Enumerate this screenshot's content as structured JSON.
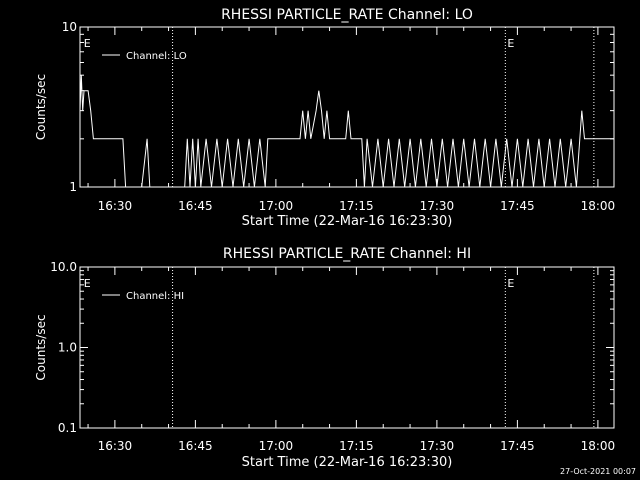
{
  "footer": {
    "timestamp": "27-Oct-2021 00:07"
  },
  "chart_data": [
    {
      "type": "line",
      "title": "RHESSI PARTICLE_RATE Channel: LO",
      "xlabel": "Start Time (22-Mar-16 16:23:30)",
      "ylabel": "Counts/sec",
      "yscale": "log",
      "ylim": [
        1,
        10
      ],
      "xlim": [
        "16:23:30",
        "18:03:00"
      ],
      "ytick_labels": [
        "1",
        "10"
      ],
      "xtick_labels": [
        "16:30",
        "16:45",
        "17:00",
        "17:15",
        "17:30",
        "17:45",
        "18:00"
      ],
      "legend": {
        "placement": "top-left",
        "entries": [
          "Channel: LO"
        ]
      },
      "event_markers": [
        {
          "time": "16:23:50",
          "label": "E",
          "line": false
        },
        {
          "time": "16:40:45",
          "label": "",
          "line": true
        },
        {
          "time": "17:42:45",
          "label": "E",
          "line": true
        },
        {
          "time": "17:59:15",
          "label": "",
          "line": true
        }
      ],
      "series": [
        {
          "points": [
            [
              "16:23:30",
              3
            ],
            [
              "16:23:45",
              5
            ],
            [
              "16:24:00",
              3
            ],
            [
              "16:24:15",
              4
            ],
            [
              "16:25:00",
              4
            ],
            [
              "16:25:30",
              3
            ],
            [
              "16:26:00",
              2
            ],
            [
              "16:31:30",
              2
            ],
            [
              "16:32:00",
              1
            ],
            [
              "16:35:00",
              1
            ],
            [
              "16:36:00",
              2
            ],
            [
              "16:36:30",
              1
            ],
            [
              "16:43:00",
              1
            ],
            [
              "16:43:30",
              2
            ],
            [
              "16:44:00",
              1
            ],
            [
              "16:44:30",
              2
            ],
            [
              "16:45:00",
              1
            ],
            [
              "16:45:30",
              2
            ],
            [
              "16:46:00",
              1
            ],
            [
              "16:47:00",
              2
            ],
            [
              "16:48:00",
              1
            ],
            [
              "16:49:00",
              2
            ],
            [
              "16:50:00",
              1
            ],
            [
              "16:51:00",
              2
            ],
            [
              "16:52:00",
              1
            ],
            [
              "16:53:00",
              2
            ],
            [
              "16:54:00",
              1
            ],
            [
              "16:55:00",
              2
            ],
            [
              "16:56:00",
              1
            ],
            [
              "16:57:00",
              2
            ],
            [
              "16:58:00",
              1
            ],
            [
              "16:58:30",
              2
            ],
            [
              "17:04:30",
              2
            ],
            [
              "17:05:00",
              3
            ],
            [
              "17:05:30",
              2
            ],
            [
              "17:06:00",
              3
            ],
            [
              "17:06:30",
              2
            ],
            [
              "17:07:30",
              3
            ],
            [
              "17:08:00",
              4
            ],
            [
              "17:08:30",
              3
            ],
            [
              "17:09:00",
              2
            ],
            [
              "17:09:30",
              3
            ],
            [
              "17:10:00",
              2
            ],
            [
              "17:13:00",
              2
            ],
            [
              "17:13:30",
              3
            ],
            [
              "17:14:00",
              2
            ],
            [
              "17:16:00",
              2
            ],
            [
              "17:16:30",
              1
            ],
            [
              "17:17:00",
              2
            ],
            [
              "17:18:00",
              1
            ],
            [
              "17:19:00",
              2
            ],
            [
              "17:20:00",
              1
            ],
            [
              "17:21:00",
              2
            ],
            [
              "17:22:00",
              1
            ],
            [
              "17:23:00",
              2
            ],
            [
              "17:24:00",
              1
            ],
            [
              "17:25:00",
              2
            ],
            [
              "17:26:00",
              1
            ],
            [
              "17:27:00",
              2
            ],
            [
              "17:28:00",
              1
            ],
            [
              "17:29:00",
              2
            ],
            [
              "17:30:00",
              1
            ],
            [
              "17:31:00",
              2
            ],
            [
              "17:32:00",
              1
            ],
            [
              "17:33:00",
              2
            ],
            [
              "17:34:00",
              1
            ],
            [
              "17:35:00",
              2
            ],
            [
              "17:36:00",
              1
            ],
            [
              "17:37:00",
              2
            ],
            [
              "17:38:00",
              1
            ],
            [
              "17:39:00",
              2
            ],
            [
              "17:40:00",
              1
            ],
            [
              "17:41:00",
              2
            ],
            [
              "17:42:00",
              1
            ],
            [
              "17:43:00",
              2
            ],
            [
              "17:44:00",
              1
            ],
            [
              "17:45:00",
              2
            ],
            [
              "17:46:00",
              1
            ],
            [
              "17:47:00",
              2
            ],
            [
              "17:48:00",
              1
            ],
            [
              "17:49:00",
              2
            ],
            [
              "17:50:00",
              1
            ],
            [
              "17:51:00",
              2
            ],
            [
              "17:52:00",
              1
            ],
            [
              "17:53:00",
              2
            ],
            [
              "17:54:00",
              1
            ],
            [
              "17:55:00",
              2
            ],
            [
              "17:56:00",
              1
            ],
            [
              "17:57:00",
              3
            ],
            [
              "17:57:30",
              2
            ],
            [
              "18:03:00",
              2
            ]
          ]
        }
      ]
    },
    {
      "type": "line",
      "title": "RHESSI PARTICLE_RATE Channel: HI",
      "xlabel": "Start Time (22-Mar-16 16:23:30)",
      "ylabel": "Counts/sec",
      "yscale": "log",
      "ylim": [
        0.1,
        10
      ],
      "xlim": [
        "16:23:30",
        "18:03:00"
      ],
      "ytick_labels": [
        "0.1",
        "1.0",
        "10.0"
      ],
      "xtick_labels": [
        "16:30",
        "16:45",
        "17:00",
        "17:15",
        "17:30",
        "17:45",
        "18:00"
      ],
      "legend": {
        "placement": "top-left",
        "entries": [
          "Channel: HI"
        ]
      },
      "event_markers": [
        {
          "time": "16:23:50",
          "label": "E",
          "line": false
        },
        {
          "time": "16:40:45",
          "label": "",
          "line": true
        },
        {
          "time": "17:42:45",
          "label": "E",
          "line": true
        },
        {
          "time": "17:59:15",
          "label": "",
          "line": true
        }
      ],
      "series": [
        {
          "points": []
        }
      ]
    }
  ]
}
